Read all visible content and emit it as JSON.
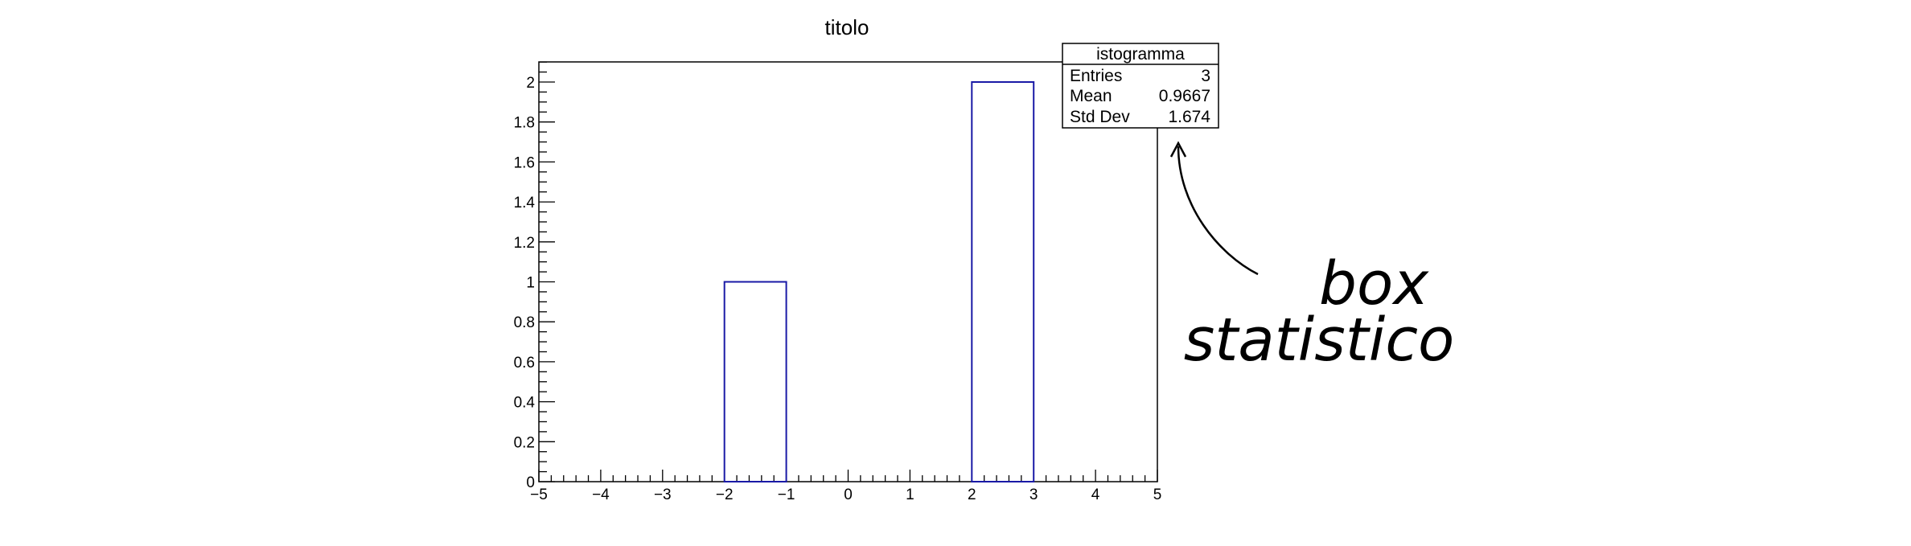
{
  "chart_data": {
    "type": "bar",
    "title": "titolo",
    "xlabel": "",
    "ylabel": "",
    "xlim": [
      -5,
      5
    ],
    "ylim": [
      0,
      2.1
    ],
    "grid": false,
    "bins": [
      {
        "low": -2,
        "high": -1,
        "value": 1
      },
      {
        "low": 2,
        "high": 3,
        "value": 2
      }
    ],
    "x_ticks": [
      -5,
      -4,
      -3,
      -2,
      -1,
      0,
      1,
      2,
      3,
      4,
      5
    ],
    "y_ticks": [
      0,
      0.2,
      0.4,
      0.6,
      0.8,
      1,
      1.2,
      1.4,
      1.6,
      1.8,
      2
    ],
    "line_color": "#1a1aa6",
    "stats_box": {
      "name": "istogramma",
      "rows": [
        {
          "label": "Entries",
          "value": "3"
        },
        {
          "label": "Mean",
          "value": "0.9667"
        },
        {
          "label": "Std Dev",
          "value": "1.674"
        }
      ],
      "placement": "top-right"
    },
    "annotation": {
      "lines": [
        "box",
        "statistico"
      ]
    }
  }
}
